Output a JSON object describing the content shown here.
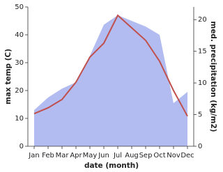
{
  "chart_data": {
    "type": "line",
    "x_label": "date (month)",
    "y_label": "max temp (C)",
    "y2_label": "med. precipitation (kg/m2)",
    "categories": [
      "Jan",
      "Feb",
      "Mar",
      "Apr",
      "May",
      "Jun",
      "Jul",
      "Aug",
      "Sep",
      "Oct",
      "Nov",
      "Dec"
    ],
    "series": [
      {
        "name": "med. precipitation",
        "type": "area",
        "axis": "y2",
        "color": "#b3bcf0",
        "values": [
          5.7,
          7.7,
          9.1,
          10.1,
          14.3,
          19.2,
          20.7,
          19.8,
          18.9,
          17.6,
          6.8,
          8.6
        ]
      },
      {
        "name": "max temp",
        "type": "line",
        "axis": "y",
        "color": "#c0504d",
        "values": [
          11.7,
          13.8,
          16.8,
          23,
          32,
          37,
          47,
          42.5,
          38,
          30.5,
          20,
          10.8
        ]
      }
    ],
    "ylim": [
      0,
      50
    ],
    "yticks": [
      0,
      10,
      20,
      30,
      40,
      50
    ],
    "y2lim": [
      0,
      22
    ],
    "y2ticks": [
      0,
      5,
      10,
      15,
      20
    ]
  }
}
